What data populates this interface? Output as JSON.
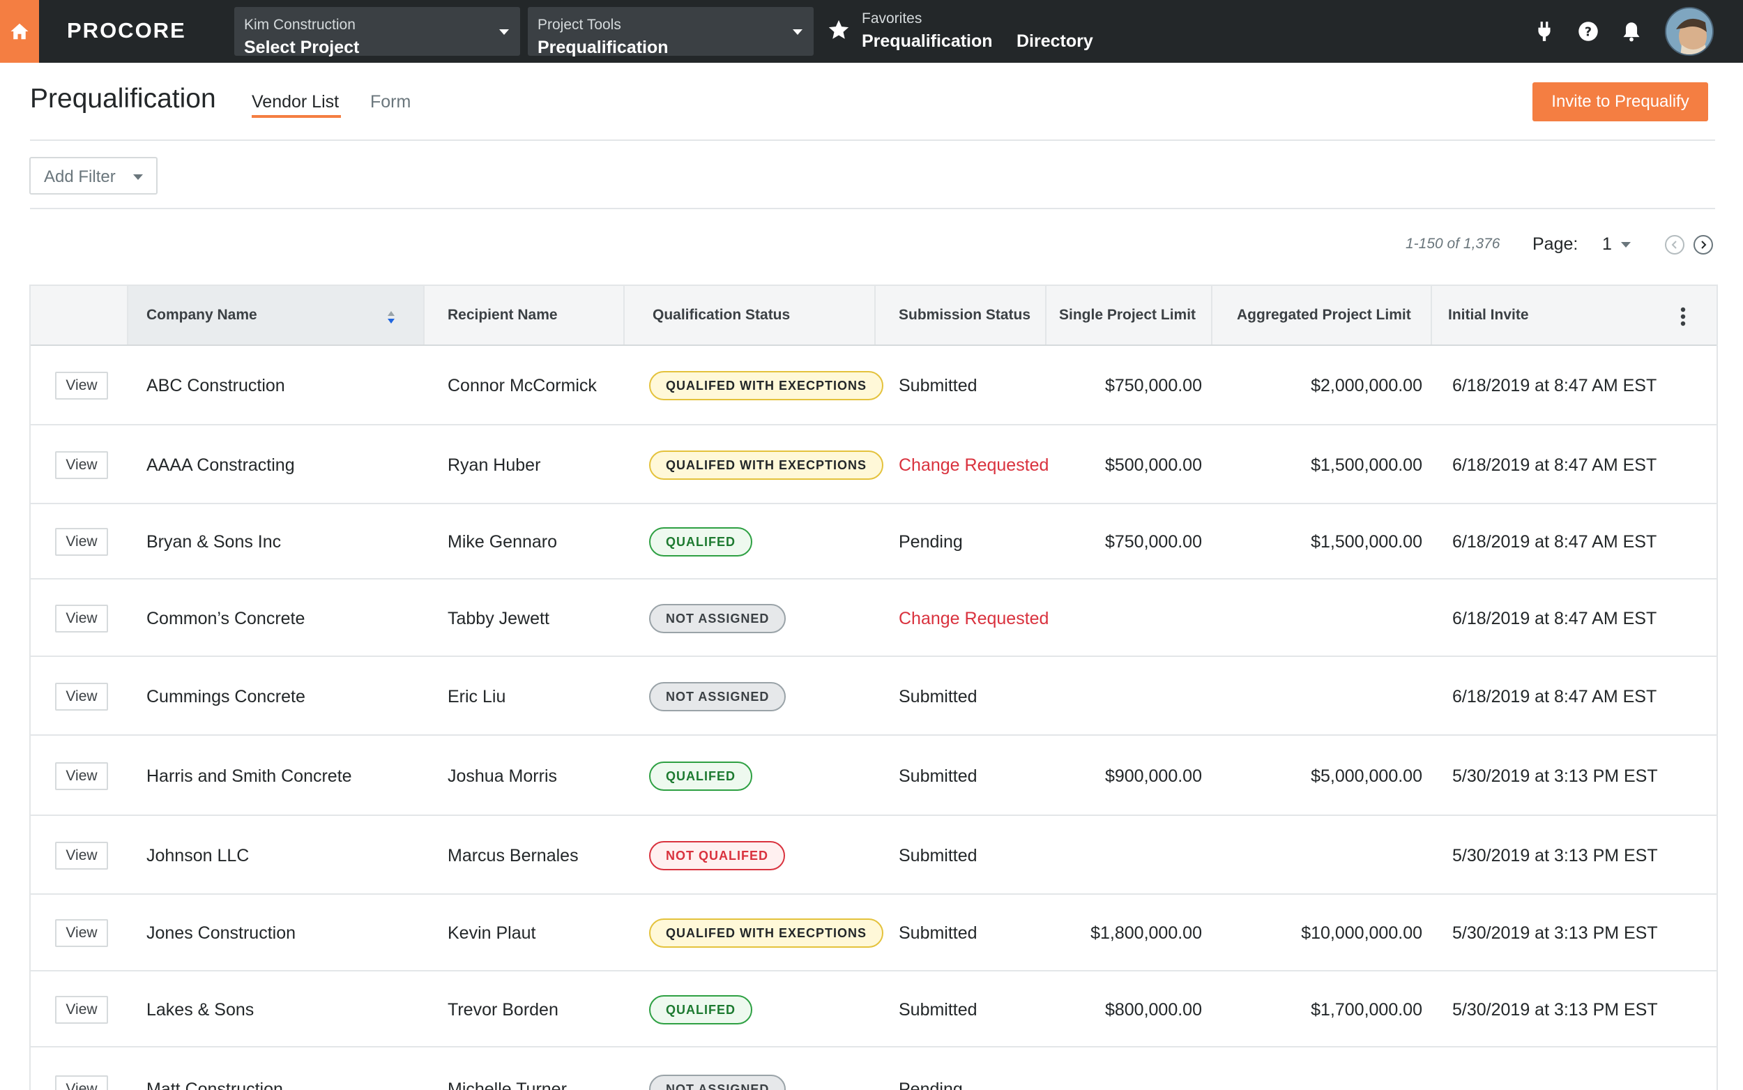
{
  "nav": {
    "logo": "PROCORE",
    "company": {
      "caption": "Kim Construction",
      "value": "Select Project"
    },
    "tools": {
      "caption": "Project Tools",
      "value": "Prequalification"
    },
    "favorites": {
      "caption": "Favorites",
      "items": [
        "Prequalification",
        "Directory"
      ]
    },
    "icons": [
      "home-icon",
      "plug-icon",
      "help-icon",
      "bell-icon",
      "user-avatar"
    ],
    "accent": "#f47e42",
    "bar_color": "#232729"
  },
  "page": {
    "title": "Prequalification",
    "tabs": [
      {
        "label": "Vendor List",
        "active": true
      },
      {
        "label": "Form",
        "active": false
      }
    ],
    "invite_label": "Invite to Prequalify",
    "filter_label": "Add Filter"
  },
  "pagination": {
    "range": "1-150 of 1,376",
    "page_label": "Page:",
    "page": "1"
  },
  "table": {
    "columns": [
      "Company Name",
      "Recipient Name",
      "Qualification Status",
      "Submission Status",
      "Single Project Limit",
      "Aggregated Project Limit",
      "Initial Invite"
    ],
    "sorted_column": "Company Name",
    "view_label": "View",
    "rows": [
      {
        "company": "ABC Construction",
        "recipient": "Connor McCormick",
        "qualification": "QUALIFED WITH EXECPTIONS",
        "q_type": "warn",
        "submission": "Submitted",
        "s_type": "normal",
        "single": "$750,000.00",
        "aggregated": "$2,000,000.00",
        "invite": "6/18/2019 at 8:47 AM EST"
      },
      {
        "company": "AAAA Constracting",
        "recipient": "Ryan Huber",
        "qualification": "QUALIFED WITH EXECPTIONS",
        "q_type": "warn",
        "submission": "Change Requested",
        "s_type": "red",
        "single": "$500,000.00",
        "aggregated": "$1,500,000.00",
        "invite": "6/18/2019 at 8:47 AM EST"
      },
      {
        "company": "Bryan & Sons Inc",
        "recipient": "Mike Gennaro",
        "qualification": "QUALIFED",
        "q_type": "ok",
        "submission": "Pending",
        "s_type": "normal",
        "single": "$750,000.00",
        "aggregated": "$1,500,000.00",
        "invite": "6/18/2019 at 8:47 AM EST"
      },
      {
        "company": "Common’s Concrete",
        "recipient": "Tabby Jewett",
        "qualification": "NOT ASSIGNED",
        "q_type": "na",
        "submission": "Change Requested",
        "s_type": "red",
        "single": "",
        "aggregated": "",
        "invite": "6/18/2019 at 8:47 AM EST"
      },
      {
        "company": "Cummings Concrete",
        "recipient": "Eric Liu",
        "qualification": "NOT ASSIGNED",
        "q_type": "na",
        "submission": "Submitted",
        "s_type": "normal",
        "single": "",
        "aggregated": "",
        "invite": "6/18/2019 at 8:47 AM EST"
      },
      {
        "company": "Harris and Smith Concrete",
        "recipient": "Joshua Morris",
        "qualification": "QUALIFED",
        "q_type": "ok",
        "submission": "Submitted",
        "s_type": "normal",
        "single": "$900,000.00",
        "aggregated": "$5,000,000.00",
        "invite": "5/30/2019 at 3:13 PM EST"
      },
      {
        "company": "Johnson LLC",
        "recipient": "Marcus Bernales",
        "qualification": "NOT QUALIFED",
        "q_type": "bad",
        "submission": "Submitted",
        "s_type": "normal",
        "single": "",
        "aggregated": "",
        "invite": "5/30/2019 at 3:13 PM EST"
      },
      {
        "company": "Jones Construction",
        "recipient": "Kevin Plaut",
        "qualification": "QUALIFED WITH EXECPTIONS",
        "q_type": "warn",
        "submission": "Submitted",
        "s_type": "normal",
        "single": "$1,800,000.00",
        "aggregated": "$10,000,000.00",
        "invite": "5/30/2019 at 3:13 PM EST"
      },
      {
        "company": "Lakes & Sons",
        "recipient": "Trevor Borden",
        "qualification": "QUALIFED",
        "q_type": "ok",
        "submission": "Submitted",
        "s_type": "normal",
        "single": "$800,000.00",
        "aggregated": "$1,700,000.00",
        "invite": "5/30/2019 at 3:13 PM EST"
      },
      {
        "company": "Matt Construction",
        "recipient": "Michelle Turner",
        "qualification": "NOT ASSIGNED",
        "q_type": "na",
        "submission": "Pending",
        "s_type": "normal",
        "single": "",
        "aggregated": "",
        "invite": ""
      }
    ]
  }
}
